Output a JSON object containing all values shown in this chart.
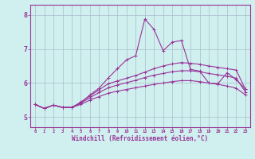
{
  "xlabel": "Windchill (Refroidissement éolien,°C)",
  "background_color": "#cff0ee",
  "line_color": "#993399",
  "x_ticks": [
    0,
    1,
    2,
    3,
    4,
    5,
    6,
    7,
    8,
    9,
    10,
    11,
    12,
    13,
    14,
    15,
    16,
    17,
    18,
    19,
    20,
    21,
    22,
    23
  ],
  "ylim": [
    4.7,
    8.3
  ],
  "yticks": [
    5,
    6,
    7,
    8
  ],
  "series1": [
    5.37,
    5.25,
    5.35,
    5.28,
    5.28,
    5.42,
    5.65,
    5.85,
    6.15,
    6.42,
    6.68,
    6.8,
    7.88,
    7.58,
    6.95,
    7.2,
    7.25,
    6.4,
    6.35,
    6.0,
    5.98,
    6.3,
    6.1,
    5.82
  ],
  "series2": [
    5.37,
    5.25,
    5.35,
    5.28,
    5.28,
    5.44,
    5.62,
    5.8,
    5.98,
    6.06,
    6.14,
    6.22,
    6.32,
    6.42,
    6.5,
    6.56,
    6.6,
    6.58,
    6.55,
    6.5,
    6.46,
    6.42,
    6.38,
    5.82
  ],
  "series3": [
    5.37,
    5.25,
    5.35,
    5.28,
    5.28,
    5.41,
    5.57,
    5.72,
    5.86,
    5.94,
    6.01,
    6.08,
    6.16,
    6.23,
    6.28,
    6.33,
    6.36,
    6.36,
    6.33,
    6.28,
    6.24,
    6.2,
    6.14,
    5.74
  ],
  "series4": [
    5.37,
    5.25,
    5.35,
    5.28,
    5.28,
    5.37,
    5.5,
    5.6,
    5.7,
    5.76,
    5.81,
    5.86,
    5.91,
    5.96,
    6.0,
    6.04,
    6.07,
    6.07,
    6.04,
    6.0,
    5.96,
    5.91,
    5.85,
    5.65
  ]
}
